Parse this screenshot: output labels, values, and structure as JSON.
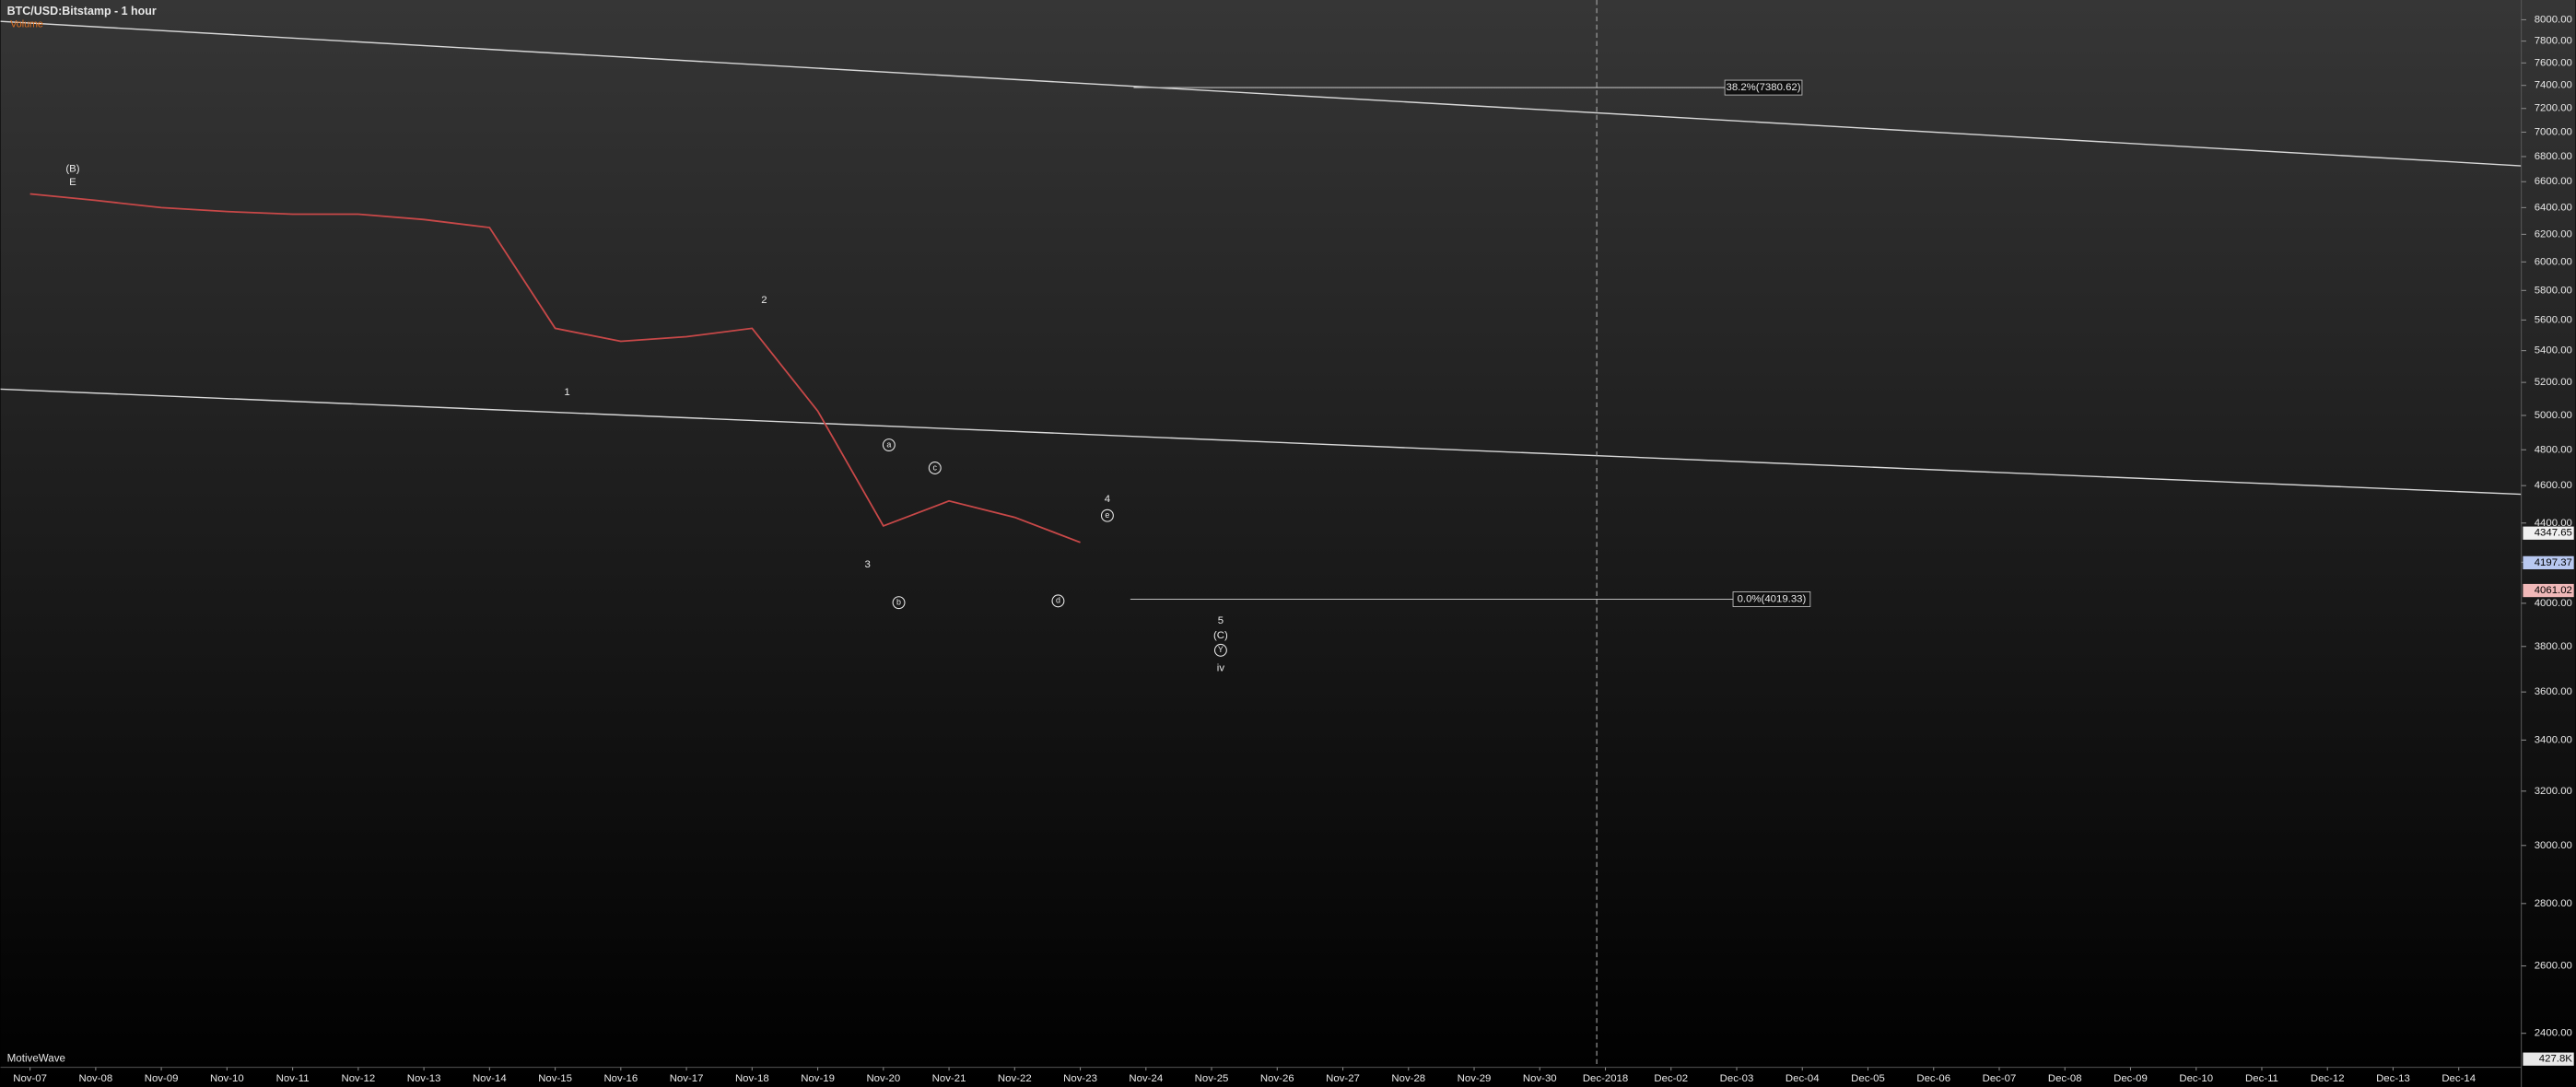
{
  "chart_data": {
    "type": "line",
    "title": "BTC/USD:Bitstamp - 1 hour",
    "indicator_label": "Volume",
    "watermark": "MotiveWave",
    "log": true,
    "color": "#c84848",
    "categories": [
      "Nov-07",
      "Nov-08",
      "Nov-09",
      "Nov-10",
      "Nov-11",
      "Nov-12",
      "Nov-13",
      "Nov-14",
      "Nov-15",
      "Nov-16",
      "Nov-17",
      "Nov-18",
      "Nov-19",
      "Nov-20",
      "Nov-21",
      "Nov-22",
      "Nov-23",
      "Nov-24",
      "Nov-25",
      "Nov-26",
      "Nov-27",
      "Nov-28",
      "Nov-29",
      "Nov-30",
      "Dec-2018",
      "Dec-02",
      "Dec-03",
      "Dec-04",
      "Dec-05",
      "Dec-06",
      "Dec-07",
      "Dec-08",
      "Dec-09",
      "Dec-10",
      "Dec-11",
      "Dec-12",
      "Dec-13",
      "Dec-14"
    ],
    "values": [
      6505,
      6455,
      6400,
      6370,
      6350,
      6350,
      6310,
      6250,
      5545,
      5460,
      5490,
      5545,
      5026,
      4385,
      4517,
      4430,
      4300,
      null,
      null,
      null,
      null,
      null,
      null,
      null,
      null,
      null,
      null,
      null,
      null,
      null,
      null,
      null,
      null,
      null,
      null,
      null,
      null,
      null
    ],
    "ylim": [
      2305,
      8190
    ],
    "yticks": [
      {
        "value": 2400,
        "label": "2400.00"
      },
      {
        "value": 2600,
        "label": "2600.00"
      },
      {
        "value": 2800,
        "label": "2800.00"
      },
      {
        "value": 3000,
        "label": "3000.00"
      },
      {
        "value": 3200,
        "label": "3200.00"
      },
      {
        "value": 3400,
        "label": "3400.00"
      },
      {
        "value": 3600,
        "label": "3600.00"
      },
      {
        "value": 3800,
        "label": "3800.00"
      },
      {
        "value": 4000,
        "label": "4000.00"
      },
      {
        "value": 4200,
        "label": "4200.00"
      },
      {
        "value": 4400,
        "label": "4400.00"
      },
      {
        "value": 4600,
        "label": "4600.00"
      },
      {
        "value": 4800,
        "label": "4800.00"
      },
      {
        "value": 5000,
        "label": "5000.00"
      },
      {
        "value": 5200,
        "label": "5200.00"
      },
      {
        "value": 5400,
        "label": "5400.00"
      },
      {
        "value": 5600,
        "label": "5600.00"
      },
      {
        "value": 5800,
        "label": "5800.00"
      },
      {
        "value": 6000,
        "label": "6000.00"
      },
      {
        "value": 6200,
        "label": "6200.00"
      },
      {
        "value": 6400,
        "label": "6400.00"
      },
      {
        "value": 6600,
        "label": "6600.00"
      },
      {
        "value": 6800,
        "label": "6800.00"
      },
      {
        "value": 7000,
        "label": "7000.00"
      },
      {
        "value": 7200,
        "label": "7200.00"
      },
      {
        "value": 7400,
        "label": "7400.00"
      },
      {
        "value": 7600,
        "label": "7600.00"
      },
      {
        "value": 7800,
        "label": "7800.00"
      },
      {
        "value": 8000,
        "label": "8000.00"
      }
    ],
    "fib_levels": [
      {
        "value": 7380.62,
        "label": "38.2%(7380.62)"
      },
      {
        "value": 4019.33,
        "label": "0.0%(4019.33)"
      }
    ],
    "price_tags": [
      {
        "value": 4347.65,
        "label": "4347.65",
        "color": "#f0f0f0"
      },
      {
        "value": 4197.37,
        "label": "4197.37",
        "color": "#b8c8f0"
      },
      {
        "value": 4061.02,
        "label": "4061.02",
        "color": "#f0b8b8"
      }
    ],
    "volume_tag": "427.8K",
    "annotations": [
      {
        "text": "(B)"
      },
      {
        "text": "E"
      },
      {
        "text": "1"
      },
      {
        "text": "2"
      },
      {
        "text": "3"
      },
      {
        "text": "a",
        "circled": true
      },
      {
        "text": "b",
        "circled": true
      },
      {
        "text": "c",
        "circled": true
      },
      {
        "text": "d",
        "circled": true
      },
      {
        "text": "4"
      },
      {
        "text": "e",
        "circled": true
      },
      {
        "text": "5"
      },
      {
        "text": "(C)"
      },
      {
        "text": "Y",
        "circled": true
      },
      {
        "text": "iv"
      }
    ]
  }
}
